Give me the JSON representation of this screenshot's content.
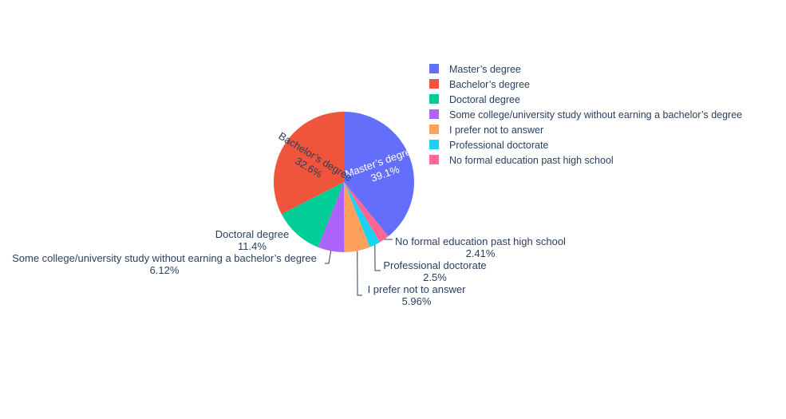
{
  "chart_data": {
    "type": "pie",
    "title": "",
    "legend_position": "right",
    "slices": [
      {
        "label": "Master’s degree",
        "percent_text": "39.1%",
        "value": 39.1,
        "color": "#636efa",
        "text_color": "#ffffff",
        "label_position": "inside"
      },
      {
        "label": "No formal education past high school",
        "percent_text": "2.41%",
        "value": 2.41,
        "color": "#ff6692",
        "text_color": "#2a3f5f",
        "label_position": "outside"
      },
      {
        "label": "Professional doctorate",
        "percent_text": "2.5%",
        "value": 2.5,
        "color": "#19d3f3",
        "text_color": "#2a3f5f",
        "label_position": "outside"
      },
      {
        "label": "I prefer not to answer",
        "percent_text": "5.96%",
        "value": 5.96,
        "color": "#ffa15a",
        "text_color": "#2a3f5f",
        "label_position": "outside"
      },
      {
        "label": "Some college/university study without earning a bachelor’s degree",
        "percent_text": "6.12%",
        "value": 6.12,
        "color": "#ab63fa",
        "text_color": "#2a3f5f",
        "label_position": "outside"
      },
      {
        "label": "Doctoral degree",
        "percent_text": "11.4%",
        "value": 11.4,
        "color": "#00cc96",
        "text_color": "#2a3f5f",
        "label_position": "outside"
      },
      {
        "label": "Bachelor’s degree",
        "percent_text": "32.6%",
        "value": 32.6,
        "color": "#ef553b",
        "text_color": "#2a3f5f",
        "label_position": "inside"
      }
    ],
    "legend": [
      {
        "label": "Master’s degree",
        "color": "#636efa"
      },
      {
        "label": "Bachelor’s degree",
        "color": "#ef553b"
      },
      {
        "label": "Doctoral degree",
        "color": "#00cc96"
      },
      {
        "label": "Some college/university study without earning a bachelor’s degree",
        "color": "#ab63fa"
      },
      {
        "label": "I prefer not to answer",
        "color": "#ffa15a"
      },
      {
        "label": "Professional doctorate",
        "color": "#19d3f3"
      },
      {
        "label": "No formal education past high school",
        "color": "#ff6692"
      }
    ]
  }
}
